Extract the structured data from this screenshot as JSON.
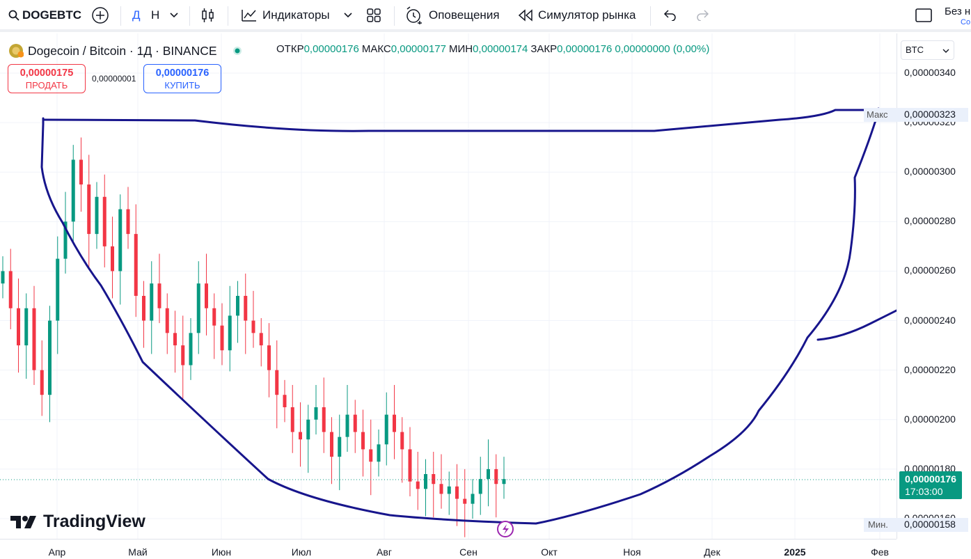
{
  "toolbar": {
    "symbol": "DOGEBTC",
    "interval_letter": "Д",
    "interval_letter2": "Н",
    "indicators": "Индикаторы",
    "alerts": "Оповещения",
    "replay": "Симулятор рынка",
    "right_title": "Без н",
    "right_sub": "Со"
  },
  "legend": {
    "name": "Dogecoin / Bitcoin · 1Д · BINANCE",
    "ohlc": [
      {
        "k": "ОТКР",
        "v": "0,00000176"
      },
      {
        "k": "МАКС",
        "v": "0,00000177"
      },
      {
        "k": "МИН",
        "v": "0,00000174"
      },
      {
        "k": "ЗАКР",
        "v": "0,00000176"
      },
      {
        "k": "",
        "v": "0,00000000 (0,00%)"
      }
    ],
    "sell_price": "0,00000175",
    "sell_label": "ПРОДАТЬ",
    "spread": "0,00000001",
    "buy_price": "0,00000176",
    "buy_label": "КУПИТЬ"
  },
  "axis": {
    "currency": "BTC",
    "max_label": "Макс",
    "min_label": "Мин.",
    "max_value": "0,00000323",
    "min_value": "0,00000158",
    "last_price": "0,00000176",
    "countdown": "17:03:00"
  },
  "watermark": "TradingView",
  "colors": {
    "up": "#089981",
    "down": "#f23645",
    "drawing": "#1a1a8c",
    "accent": "#2962ff"
  },
  "chart_data": {
    "type": "candlestick",
    "title": "Dogecoin / Bitcoin · 1Д · BINANCE",
    "y_ticks": [
      "0,00000340",
      "0,00000320",
      "0,00000300",
      "0,00000280",
      "0,00000260",
      "0,00000240",
      "0,00000220",
      "0,00000200",
      "0,00000180",
      "0,00000160"
    ],
    "y_tick_values": [
      3.4,
      3.2,
      3.0,
      2.8,
      2.6,
      2.4,
      2.2,
      2.0,
      1.8,
      1.6
    ],
    "x_ticks": [
      "Апр",
      "Май",
      "Июн",
      "Июл",
      "Авг",
      "Сен",
      "Окт",
      "Ноя",
      "Дек",
      "2025",
      "Фев"
    ],
    "ylim": [
      1.52,
      3.52
    ],
    "y_unit_note": "values in 1e-6 BTC",
    "series": [
      {
        "name": "DOGEBTC",
        "points": [
          [
            2.55,
            2.6
          ],
          [
            2.6,
            2.45
          ],
          [
            2.45,
            2.3
          ],
          [
            2.3,
            2.45
          ],
          [
            2.45,
            2.2
          ],
          [
            2.2,
            2.1
          ],
          [
            2.1,
            2.4
          ],
          [
            2.4,
            2.65
          ],
          [
            2.65,
            2.8
          ],
          [
            2.8,
            3.05
          ],
          [
            3.05,
            2.95
          ],
          [
            2.95,
            2.75
          ],
          [
            2.75,
            2.9
          ],
          [
            2.9,
            2.7
          ],
          [
            2.7,
            2.6
          ],
          [
            2.6,
            2.85
          ],
          [
            2.85,
            2.75
          ],
          [
            2.75,
            2.5
          ],
          [
            2.5,
            2.4
          ],
          [
            2.4,
            2.55
          ],
          [
            2.55,
            2.45
          ],
          [
            2.45,
            2.35
          ],
          [
            2.35,
            2.3
          ],
          [
            2.3,
            2.22
          ],
          [
            2.22,
            2.35
          ],
          [
            2.35,
            2.55
          ],
          [
            2.55,
            2.45
          ],
          [
            2.45,
            2.38
          ],
          [
            2.38,
            2.28
          ],
          [
            2.28,
            2.42
          ],
          [
            2.42,
            2.5
          ],
          [
            2.5,
            2.4
          ],
          [
            2.4,
            2.35
          ],
          [
            2.35,
            2.3
          ],
          [
            2.3,
            2.2
          ],
          [
            2.2,
            2.1
          ],
          [
            2.1,
            2.05
          ],
          [
            2.05,
            1.95
          ],
          [
            1.95,
            1.92
          ],
          [
            1.92,
            2.0
          ],
          [
            2.0,
            2.05
          ],
          [
            2.05,
            1.95
          ],
          [
            1.95,
            1.85
          ],
          [
            1.85,
            1.93
          ],
          [
            1.93,
            2.02
          ],
          [
            2.02,
            1.95
          ],
          [
            1.95,
            1.88
          ],
          [
            1.88,
            1.83
          ],
          [
            1.83,
            1.9
          ],
          [
            1.9,
            2.02
          ],
          [
            2.02,
            1.95
          ],
          [
            1.95,
            1.88
          ],
          [
            1.88,
            1.75
          ],
          [
            1.75,
            1.72
          ],
          [
            1.72,
            1.78
          ],
          [
            1.78,
            1.74
          ],
          [
            1.74,
            1.7
          ],
          [
            1.7,
            1.73
          ],
          [
            1.73,
            1.68
          ],
          [
            1.68,
            1.66
          ],
          [
            1.66,
            1.7
          ],
          [
            1.7,
            1.76
          ],
          [
            1.76,
            1.8
          ],
          [
            1.8,
            1.74
          ],
          [
            1.74,
            1.76
          ]
        ]
      }
    ]
  }
}
